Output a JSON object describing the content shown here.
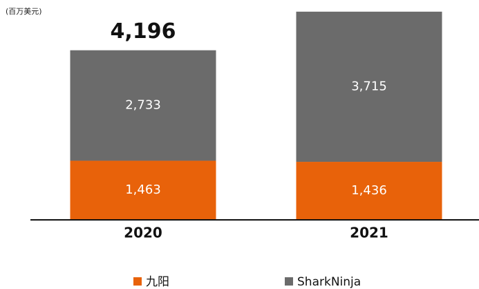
{
  "chart_data": {
    "type": "stacked_bar",
    "y_label": "(百万美元)",
    "annotations": [
      "4,196"
    ],
    "categories": [
      "2020",
      "2021"
    ],
    "series": [
      {
        "name": "九阳",
        "color": "#e8620a",
        "values": [
          1463,
          1436
        ],
        "value_labels": [
          "1,463",
          "1,436"
        ]
      },
      {
        "name": "SharkNinja",
        "color": "#6b6b6b",
        "values": [
          2733,
          3715
        ],
        "value_labels": [
          "2,733",
          "3,715"
        ]
      }
    ],
    "ylim": [
      0,
      5200
    ],
    "legend": "bottom"
  }
}
